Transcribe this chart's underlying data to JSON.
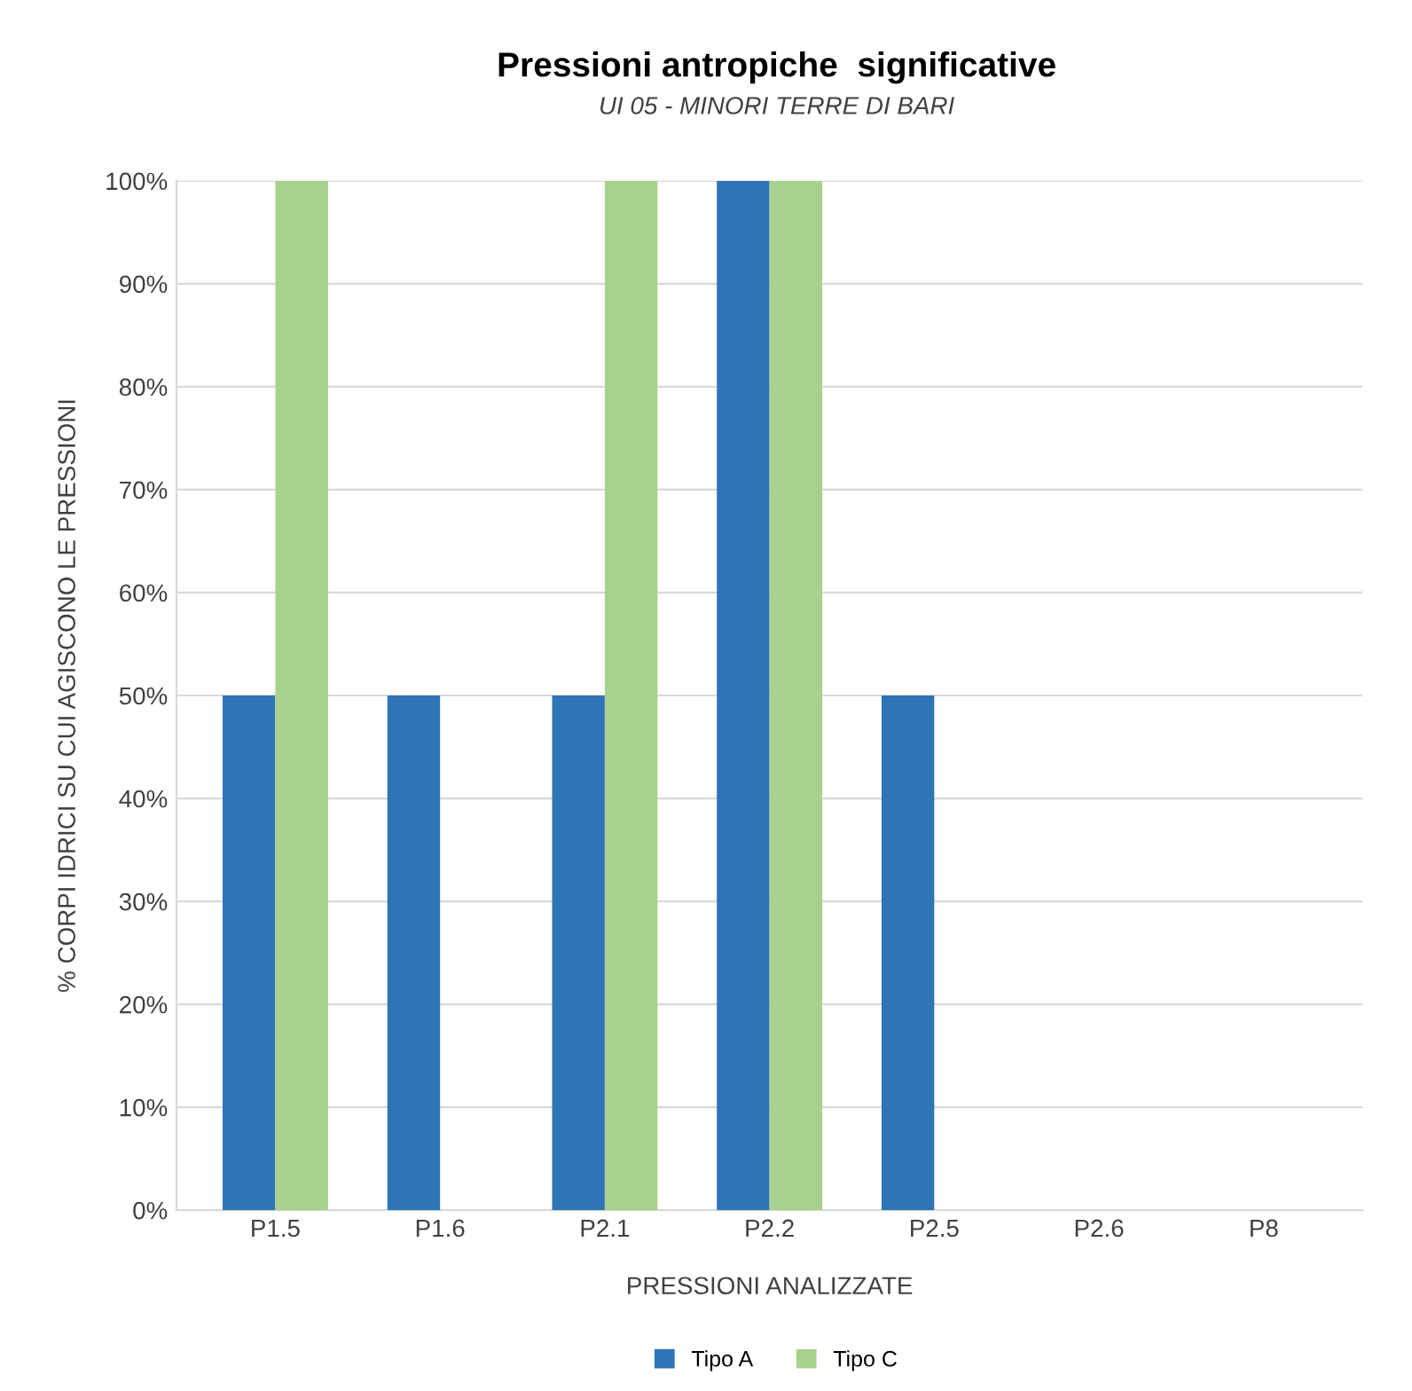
{
  "chart_data": {
    "type": "bar",
    "title": "Pressioni antropiche  significative",
    "subtitle": "UI 05 - MINORI TERRE DI BARI",
    "xlabel": "PRESSIONI ANALIZZATE",
    "ylabel": "% CORPI IDRICI SU CUI AGISCONO LE PRESSIONI",
    "categories": [
      "P1.5",
      "P1.6",
      "P2.1",
      "P2.2",
      "P2.5",
      "P2.6",
      "P8"
    ],
    "series": [
      {
        "name": "Tipo A",
        "color": "#2e75b6",
        "values": [
          50,
          50,
          50,
          100,
          50,
          0,
          0
        ]
      },
      {
        "name": "Tipo C",
        "color": "#a9d18e",
        "values": [
          100,
          0,
          100,
          100,
          0,
          0,
          0
        ]
      }
    ],
    "ylim": [
      0,
      100
    ],
    "yticks": [
      {
        "value": 0,
        "label": "0%"
      },
      {
        "value": 10,
        "label": "10%"
      },
      {
        "value": 20,
        "label": "20%"
      },
      {
        "value": 30,
        "label": "30%"
      },
      {
        "value": 40,
        "label": "40%"
      },
      {
        "value": 50,
        "label": "50%"
      },
      {
        "value": 60,
        "label": "60%"
      },
      {
        "value": 70,
        "label": "70%"
      },
      {
        "value": 80,
        "label": "80%"
      },
      {
        "value": 90,
        "label": "90%"
      },
      {
        "value": 100,
        "label": "100%"
      }
    ],
    "grid": "y",
    "legend": "bottom"
  }
}
